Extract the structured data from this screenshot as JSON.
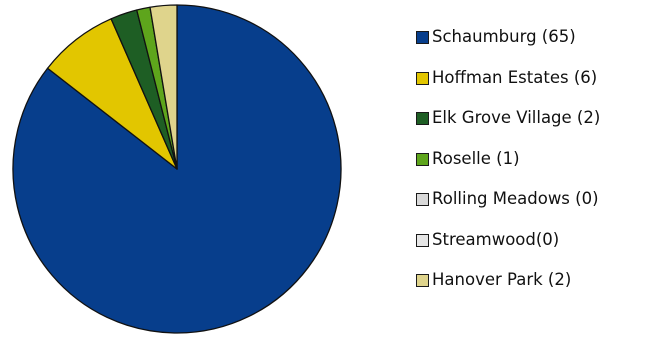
{
  "chart_data": {
    "type": "pie",
    "title": "",
    "start_angle_deg": 0,
    "direction": "clockwise",
    "legend_position": "right",
    "slices": [
      {
        "label": "Schaumburg (65)",
        "value": 65,
        "color": "#073e8c"
      },
      {
        "label": "Hoffman Estates (6)",
        "value": 6,
        "color": "#e2c600"
      },
      {
        "label": "Elk Grove Village (2)",
        "value": 2,
        "color": "#1e5e24"
      },
      {
        "label": "Roselle (1)",
        "value": 1,
        "color": "#5ea51c"
      },
      {
        "label": "Rolling Meadows (0)",
        "value": 0,
        "color": "#d9d9d9"
      },
      {
        "label": "Streamwood(0)",
        "value": 0,
        "color": "#e6e6e6"
      },
      {
        "label": "Hanover Park (2)",
        "value": 2,
        "color": "#dfd48c"
      }
    ]
  }
}
